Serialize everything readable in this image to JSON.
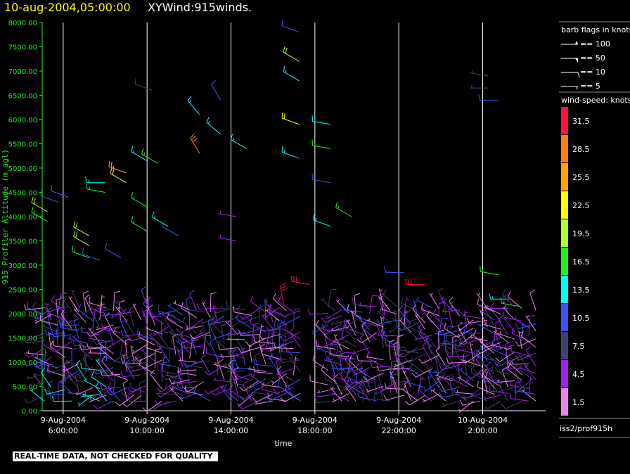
{
  "header": {
    "datetime": "10-aug-2004,05:00:00",
    "title": "XYWind:915winds."
  },
  "footer": {
    "warning": "REAL-TIME DATA, NOT CHECKED FOR QUALITY",
    "source": "iss2/prof915h"
  },
  "legend": {
    "barb_title": "barb flags in knots",
    "barbs": [
      "== 100",
      "== 50",
      "== 10",
      "== 5"
    ],
    "speed_title": "wind-speed: knots",
    "speed_bins": [
      {
        "label": "31.5",
        "color": "#ff1040"
      },
      {
        "label": "28.5",
        "color": "#ff7f00"
      },
      {
        "label": "25.5",
        "color": "#ffa500"
      },
      {
        "label": "22.5",
        "color": "#ffff00"
      },
      {
        "label": "19.5",
        "color": "#b4ff32"
      },
      {
        "label": "16.5",
        "color": "#22ee22"
      },
      {
        "label": "13.5",
        "color": "#00ffff"
      },
      {
        "label": "10.5",
        "color": "#4050ff"
      },
      {
        "label": "7.5",
        "color": "#404070"
      },
      {
        "label": "4.5",
        "color": "#a020f0"
      },
      {
        "label": "1.5",
        "color": "#ee82ee"
      }
    ]
  },
  "chart_data": {
    "type": "scatter",
    "subtype": "wind-barb time-height",
    "xlabel": "time",
    "ylabel": "915 Profiler Altitude (m agl)",
    "x_ticks": [
      {
        "date": "9-Aug-2004",
        "time": "6:00:00"
      },
      {
        "date": "9-Aug-2004",
        "time": "10:00:00"
      },
      {
        "date": "9-Aug-2004",
        "time": "14:00:00"
      },
      {
        "date": "9-Aug-2004",
        "time": "18:00:00"
      },
      {
        "date": "9-Aug-2004",
        "time": "22:00:00"
      },
      {
        "date": "10-Aug-2004",
        "time": "2:00:00"
      }
    ],
    "y_ticks": [
      "0.00",
      "500.00",
      "1000.00",
      "1500.00",
      "2000.00",
      "2500.00",
      "3000.00",
      "3500.00",
      "4000.00",
      "4500.00",
      "5000.00",
      "5500.00",
      "6000.00",
      "6500.00",
      "7000.00",
      "7500.00",
      "8000.00"
    ],
    "ylim": [
      0,
      8000
    ],
    "xlim_hours": [
      5.0,
      29.0
    ],
    "grid": "vertical lines at x ticks",
    "barbs": [
      {
        "t": "9-Aug-2004 5:15",
        "alt": 4100,
        "dir": 300,
        "spd": 18
      },
      {
        "t": "9-Aug-2004 5:15",
        "alt": 3900,
        "dir": 300,
        "spd": 17
      },
      {
        "t": "9-Aug-2004 5:45",
        "alt": 4300,
        "dir": 290,
        "spd": 11
      },
      {
        "t": "9-Aug-2004 6:15",
        "alt": 4400,
        "dir": 290,
        "spd": 11
      },
      {
        "t": "9-Aug-2004 7:15",
        "alt": 3600,
        "dir": 300,
        "spd": 19
      },
      {
        "t": "9-Aug-2004 7:15",
        "alt": 3400,
        "dir": 300,
        "spd": 19
      },
      {
        "t": "9-Aug-2004 7:15",
        "alt": 3150,
        "dir": 290,
        "spd": 16
      },
      {
        "t": "9-Aug-2004 7:45",
        "alt": 3100,
        "dir": 290,
        "spd": 11
      },
      {
        "t": "9-Aug-2004 8:00",
        "alt": 4700,
        "dir": 270,
        "spd": 13
      },
      {
        "t": "9-Aug-2004 8:00",
        "alt": 4500,
        "dir": 280,
        "spd": 16
      },
      {
        "t": "9-Aug-2004 8:45",
        "alt": 3150,
        "dir": 300,
        "spd": 10
      },
      {
        "t": "9-Aug-2004 9:00",
        "alt": 4900,
        "dir": 290,
        "spd": 26
      },
      {
        "t": "9-Aug-2004 9:00",
        "alt": 4700,
        "dir": 300,
        "spd": 22
      },
      {
        "t": "9-Aug-2004 10:00",
        "alt": 5150,
        "dir": 300,
        "spd": 13
      },
      {
        "t": "9-Aug-2004 10:00",
        "alt": 4200,
        "dir": 300,
        "spd": 17
      },
      {
        "t": "9-Aug-2004 10:00",
        "alt": 3700,
        "dir": 300,
        "spd": 17
      },
      {
        "t": "9-Aug-2004 10:15",
        "alt": 6600,
        "dir": 290,
        "spd": 8
      },
      {
        "t": "9-Aug-2004 10:30",
        "alt": 5100,
        "dir": 300,
        "spd": 16
      },
      {
        "t": "9-Aug-2004 11:00",
        "alt": 3800,
        "dir": 300,
        "spd": 13
      },
      {
        "t": "9-Aug-2004 11:30",
        "alt": 3600,
        "dir": 300,
        "spd": 11
      },
      {
        "t": "9-Aug-2004 12:30",
        "alt": 6100,
        "dir": 320,
        "spd": 14
      },
      {
        "t": "9-Aug-2004 12:30",
        "alt": 5300,
        "dir": 330,
        "spd": 28
      },
      {
        "t": "9-Aug-2004 13:30",
        "alt": 6400,
        "dir": 330,
        "spd": 10
      },
      {
        "t": "9-Aug-2004 13:30",
        "alt": 5700,
        "dir": 310,
        "spd": 14
      },
      {
        "t": "9-Aug-2004 14:15",
        "alt": 4000,
        "dir": 280,
        "spd": 5
      },
      {
        "t": "9-Aug-2004 14:15",
        "alt": 3500,
        "dir": 280,
        "spd": 5
      },
      {
        "t": "9-Aug-2004 14:45",
        "alt": 5400,
        "dir": 300,
        "spd": 13
      },
      {
        "t": "9-Aug-2004 16:30",
        "alt": 2200,
        "dir": 350,
        "spd": 31
      },
      {
        "t": "9-Aug-2004 17:15",
        "alt": 7800,
        "dir": 290,
        "spd": 11
      },
      {
        "t": "9-Aug-2004 17:15",
        "alt": 7200,
        "dir": 300,
        "spd": 19
      },
      {
        "t": "9-Aug-2004 17:15",
        "alt": 6800,
        "dir": 300,
        "spd": 14
      },
      {
        "t": "9-Aug-2004 17:15",
        "alt": 5900,
        "dir": 290,
        "spd": 22
      },
      {
        "t": "9-Aug-2004 17:15",
        "alt": 5200,
        "dir": 290,
        "spd": 13
      },
      {
        "t": "9-Aug-2004 17:45",
        "alt": 2600,
        "dir": 280,
        "spd": 31
      },
      {
        "t": "9-Aug-2004 18:45",
        "alt": 5900,
        "dir": 280,
        "spd": 13
      },
      {
        "t": "9-Aug-2004 18:45",
        "alt": 5400,
        "dir": 280,
        "spd": 17
      },
      {
        "t": "9-Aug-2004 18:45",
        "alt": 4700,
        "dir": 280,
        "spd": 11
      },
      {
        "t": "9-Aug-2004 18:45",
        "alt": 3800,
        "dir": 290,
        "spd": 13
      },
      {
        "t": "9-Aug-2004 19:45",
        "alt": 4000,
        "dir": 300,
        "spd": 17
      },
      {
        "t": "9-Aug-2004 22:15",
        "alt": 2850,
        "dir": 270,
        "spd": 11
      },
      {
        "t": "9-Aug-2004 23:15",
        "alt": 2600,
        "dir": 270,
        "spd": 31
      },
      {
        "t": "10-Aug-2004 2:15",
        "alt": 6900,
        "dir": 280,
        "spd": 7
      },
      {
        "t": "10-Aug-2004 2:15",
        "alt": 6650,
        "dir": 270,
        "spd": 7
      },
      {
        "t": "10-Aug-2004 2:45",
        "alt": 6400,
        "dir": 270,
        "spd": 10
      },
      {
        "t": "10-Aug-2004 2:45",
        "alt": 2800,
        "dir": 280,
        "spd": 16
      },
      {
        "t": "10-Aug-2004 3:15",
        "alt": 2300,
        "dir": 270,
        "spd": 13
      },
      {
        "t": "10-Aug-2004 3:45",
        "alt": 2150,
        "dir": 280,
        "spd": 16
      }
    ]
  }
}
